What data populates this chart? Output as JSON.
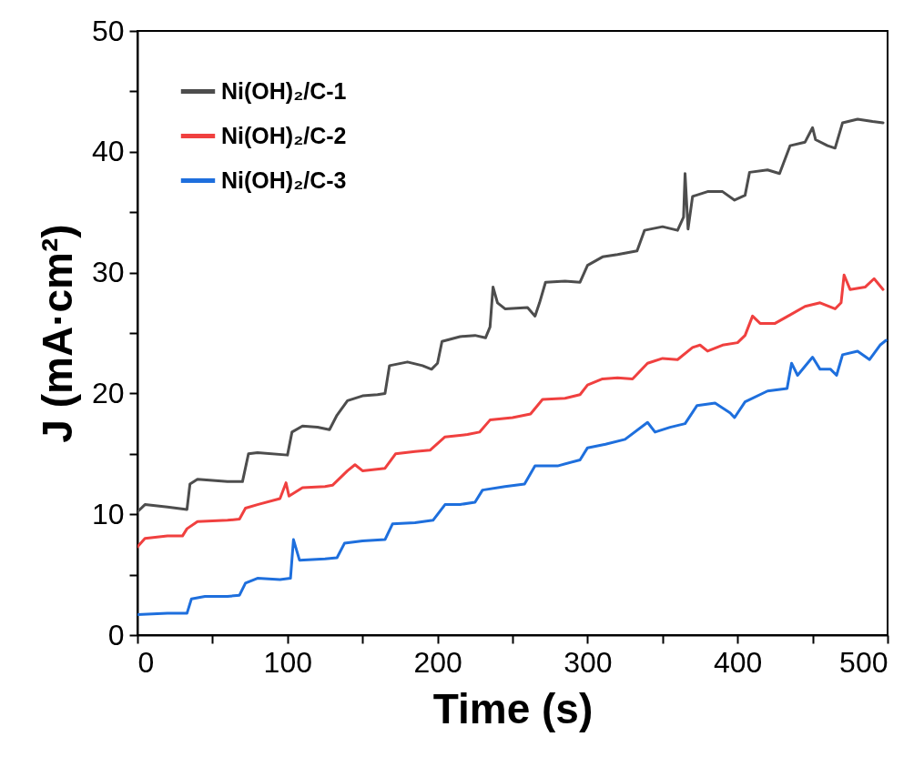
{
  "chart_data": {
    "type": "line",
    "xlabel": "Time (s)",
    "ylabel": "J (mA·cm²)",
    "xlim": [
      0,
      500
    ],
    "ylim": [
      0,
      50
    ],
    "xticks": [
      0,
      {
        "value": 50,
        "label": null
      },
      100,
      {
        "value": 150,
        "label": null
      },
      200,
      {
        "value": 250,
        "label": null
      },
      300,
      {
        "value": 350,
        "label": null
      },
      400,
      {
        "value": 450,
        "label": null
      },
      500
    ],
    "yticks": [
      0,
      {
        "value": 5,
        "label": null
      },
      10,
      {
        "value": 15,
        "label": null
      },
      20,
      {
        "value": 25,
        "label": null
      },
      30,
      {
        "value": 35,
        "label": null
      },
      40,
      {
        "value": 45,
        "label": null
      },
      50
    ],
    "grid": false,
    "legend": "top left",
    "line_style": "solid",
    "series": [
      {
        "name": "Ni(OH)₂/C-1",
        "color": "#4d4d4d",
        "x": [
          0,
          5,
          20,
          33,
          35,
          40,
          60,
          70,
          74,
          80,
          100,
          103,
          110,
          120,
          128,
          133,
          140,
          150,
          160,
          165,
          168,
          180,
          190,
          196,
          200,
          203,
          215,
          225,
          232,
          235,
          237,
          240,
          245,
          260,
          265,
          268,
          272,
          285,
          295,
          300,
          310,
          320,
          333,
          338,
          350,
          360,
          364,
          365,
          367,
          370,
          380,
          390,
          398,
          405,
          408,
          420,
          428,
          435,
          445,
          450,
          452,
          460,
          465,
          470,
          480,
          490,
          497
        ],
        "values": [
          10.2,
          10.8,
          10.6,
          10.4,
          12.5,
          12.9,
          12.7,
          12.7,
          15.0,
          15.1,
          14.9,
          16.8,
          17.3,
          17.2,
          17.0,
          18.2,
          19.4,
          19.8,
          19.9,
          20.0,
          22.3,
          22.6,
          22.3,
          22.0,
          22.5,
          24.3,
          24.7,
          24.8,
          24.6,
          25.5,
          28.8,
          27.5,
          27.0,
          27.1,
          26.4,
          27.5,
          29.2,
          29.3,
          29.2,
          30.6,
          31.3,
          31.5,
          31.8,
          33.5,
          33.8,
          33.5,
          34.6,
          38.2,
          33.6,
          36.3,
          36.7,
          36.7,
          36.0,
          36.4,
          38.3,
          38.5,
          38.2,
          40.5,
          40.8,
          42.0,
          41.0,
          40.5,
          40.3,
          42.4,
          42.7,
          42.5,
          42.4
        ]
      },
      {
        "name": "Ni(OH)₂/C-2",
        "color": "#f0403f",
        "x": [
          0,
          5,
          20,
          30,
          33,
          40,
          60,
          68,
          72,
          80,
          95,
          99,
          101,
          110,
          125,
          130,
          140,
          145,
          150,
          165,
          172,
          185,
          195,
          205,
          220,
          228,
          235,
          250,
          262,
          270,
          285,
          295,
          300,
          310,
          320,
          330,
          340,
          350,
          360,
          370,
          375,
          380,
          390,
          400,
          405,
          410,
          415,
          425,
          435,
          445,
          455,
          465,
          469,
          471,
          475,
          485,
          491,
          497
        ],
        "values": [
          7.3,
          8.0,
          8.2,
          8.2,
          8.8,
          9.4,
          9.5,
          9.6,
          10.5,
          10.8,
          11.3,
          12.6,
          11.5,
          12.2,
          12.3,
          12.4,
          13.6,
          14.1,
          13.6,
          13.8,
          15.0,
          15.2,
          15.3,
          16.4,
          16.6,
          16.8,
          17.8,
          18.0,
          18.3,
          19.5,
          19.6,
          19.9,
          20.7,
          21.2,
          21.3,
          21.2,
          22.5,
          22.9,
          22.8,
          23.8,
          24.0,
          23.5,
          24.0,
          24.2,
          24.8,
          26.4,
          25.8,
          25.8,
          26.5,
          27.2,
          27.5,
          27.0,
          27.5,
          29.8,
          28.6,
          28.8,
          29.5,
          28.6
        ]
      },
      {
        "name": "Ni(OH)₂/C-3",
        "color": "#1e6fdd",
        "x": [
          0,
          20,
          33,
          36,
          45,
          60,
          68,
          72,
          80,
          95,
          102,
          104,
          108,
          125,
          133,
          138,
          150,
          165,
          170,
          185,
          197,
          205,
          215,
          225,
          230,
          245,
          258,
          265,
          280,
          295,
          300,
          312,
          325,
          340,
          345,
          355,
          365,
          373,
          385,
          395,
          398,
          405,
          420,
          433,
          436,
          440,
          450,
          455,
          462,
          466,
          470,
          480,
          488,
          495,
          499
        ],
        "values": [
          1.7,
          1.8,
          1.8,
          3.0,
          3.2,
          3.2,
          3.3,
          4.3,
          4.7,
          4.6,
          4.7,
          7.9,
          6.2,
          6.3,
          6.4,
          7.6,
          7.8,
          7.9,
          9.2,
          9.3,
          9.5,
          10.8,
          10.8,
          11.0,
          12.0,
          12.3,
          12.5,
          14.0,
          14.0,
          14.5,
          15.5,
          15.8,
          16.2,
          17.6,
          16.8,
          17.2,
          17.5,
          19.0,
          19.2,
          18.4,
          18.0,
          19.3,
          20.2,
          20.4,
          22.5,
          21.5,
          23.0,
          22.0,
          22.0,
          21.5,
          23.2,
          23.5,
          22.8,
          24.0,
          24.4
        ]
      }
    ]
  }
}
